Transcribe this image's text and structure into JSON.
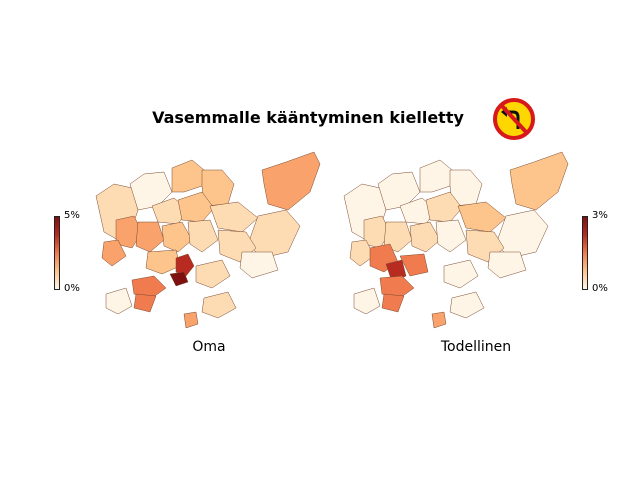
{
  "title": "Vasemmalle kääntyminen kielletty",
  "sign_icon": "no-left-turn-sign-icon",
  "colors": {
    "low": "#fff5e6",
    "mid1": "#fddcb4",
    "mid2": "#fdc48c",
    "mid3": "#f9a26b",
    "mid4": "#ef7b4f",
    "high": "#b82b20",
    "max": "#7f1010",
    "sign_red": "#d7191c",
    "sign_yellow": "#ffd700"
  },
  "maps": [
    {
      "label": "Oma",
      "colorbar": {
        "max_label": "5%",
        "min_label": "0%"
      }
    },
    {
      "label": "Todellinen",
      "colorbar": {
        "max_label": "3%",
        "min_label": "0%"
      }
    }
  ]
}
